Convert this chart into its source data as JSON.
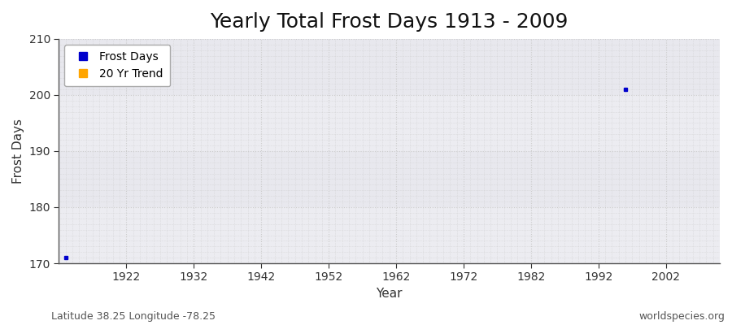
{
  "title": "Yearly Total Frost Days 1913 - 2009",
  "xlabel": "Year",
  "ylabel": "Frost Days",
  "xlim": [
    1912,
    2010
  ],
  "ylim": [
    170,
    210
  ],
  "yticks": [
    170,
    180,
    190,
    200,
    210
  ],
  "xticks": [
    1922,
    1932,
    1942,
    1952,
    1962,
    1972,
    1982,
    1992,
    2002
  ],
  "data_points": [
    {
      "year": 1913,
      "value": 171
    },
    {
      "year": 1996,
      "value": 201
    }
  ],
  "point_color": "#0000cc",
  "point_marker": "s",
  "point_size": 3,
  "fig_bg_color": "#ffffff",
  "plot_bg_color": "#e8e8ee",
  "grid_color": "#cccccc",
  "legend_entries": [
    {
      "label": "Frost Days",
      "color": "#0000cc",
      "marker": "s"
    },
    {
      "label": "20 Yr Trend",
      "color": "#ffa500",
      "marker": "s"
    }
  ],
  "footnote_left": "Latitude 38.25 Longitude -78.25",
  "footnote_right": "worldspecies.org",
  "title_fontsize": 18,
  "axis_label_fontsize": 11,
  "tick_fontsize": 10,
  "legend_fontsize": 10,
  "footnote_fontsize": 9
}
